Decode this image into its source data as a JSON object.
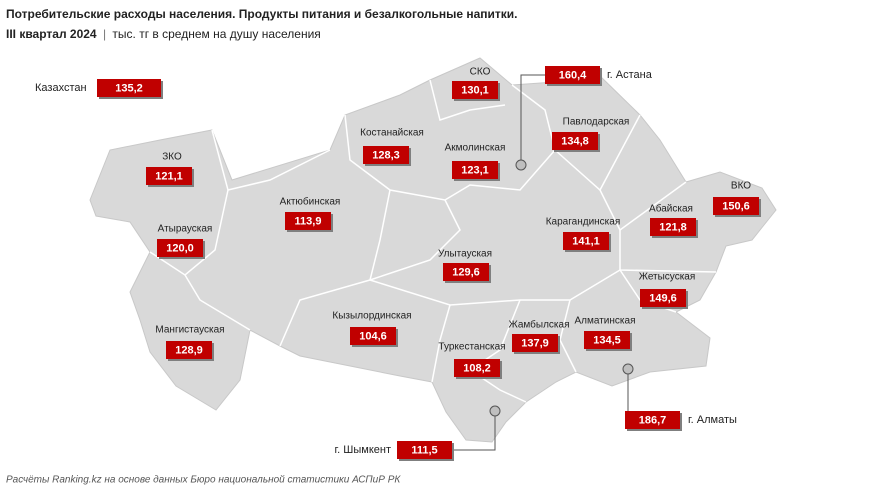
{
  "title": "Потребительские расходы населения. Продукты питания и безалкогольные напитки.",
  "subtitle": {
    "period": "III квартал 2024",
    "separator": "|",
    "units": "тыс. тг в среднем на душу населения"
  },
  "country": {
    "name": "Казахстан",
    "value": "135,2"
  },
  "regions": [
    {
      "name": "СКО",
      "value": "130,1"
    },
    {
      "name": "Костанайская",
      "value": "128,3"
    },
    {
      "name": "Павлодарская",
      "value": "134,8"
    },
    {
      "name": "Акмолинская",
      "value": "123,1"
    },
    {
      "name": "ЗКО",
      "value": "121,1"
    },
    {
      "name": "ВКО",
      "value": "150,6"
    },
    {
      "name": "Актюбинская",
      "value": "113,9"
    },
    {
      "name": "Абайская",
      "value": "121,8"
    },
    {
      "name": "Карагандинская",
      "value": "141,1"
    },
    {
      "name": "Атырауская",
      "value": "120,0"
    },
    {
      "name": "Улытауская",
      "value": "129,6"
    },
    {
      "name": "Жетысуская",
      "value": "149,6"
    },
    {
      "name": "Мангистауская",
      "value": "128,9"
    },
    {
      "name": "Кызылординская",
      "value": "104,6"
    },
    {
      "name": "Алматинская",
      "value": "134,5"
    },
    {
      "name": "Жамбылская",
      "value": "137,9"
    },
    {
      "name": "Туркестанская",
      "value": "108,2"
    }
  ],
  "cities": [
    {
      "name": "г. Астана",
      "value": "160,4"
    },
    {
      "name": "г. Алматы",
      "value": "186,7"
    },
    {
      "name": "г. Шымкент",
      "value": "111,5"
    }
  ],
  "source": "Расчёты Ranking.kz на основе данных Бюро национальной статистики АСПиР РК"
}
